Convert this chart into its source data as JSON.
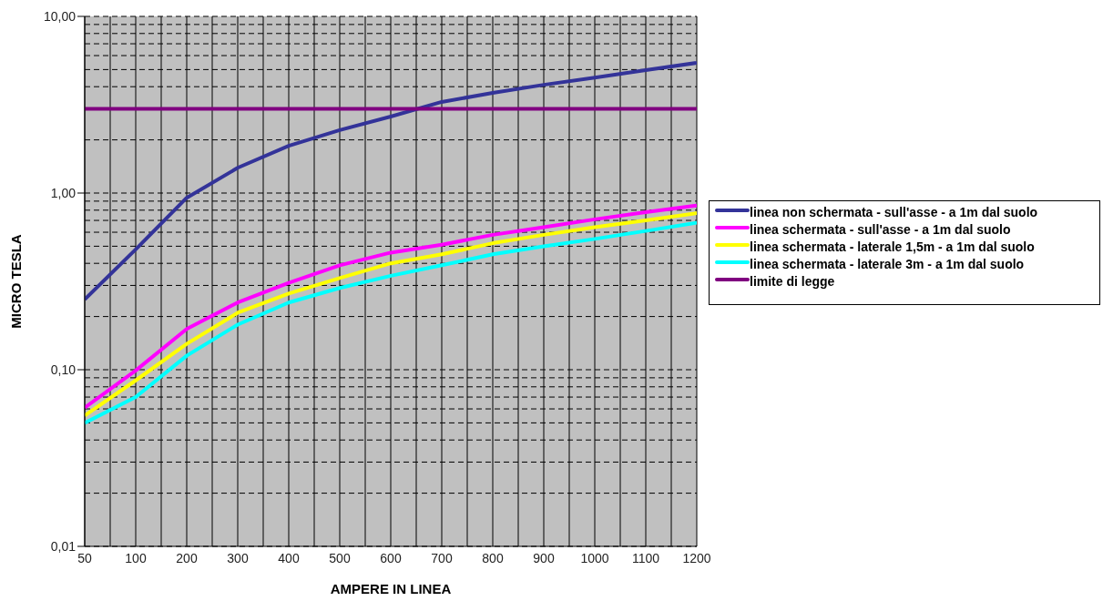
{
  "chart_data": {
    "type": "line",
    "xlabel": "AMPERE IN LINEA",
    "ylabel": "MICRO TESLA",
    "categories": [
      "50",
      "100",
      "200",
      "300",
      "400",
      "500",
      "600",
      "700",
      "800",
      "900",
      "1000",
      "1100",
      "1200"
    ],
    "series": [
      {
        "name": "linea non schermata - sull'asse - a 1m dal suolo",
        "color": "#333399",
        "values": [
          0.25,
          0.48,
          0.94,
          1.39,
          1.85,
          2.27,
          2.71,
          3.28,
          3.69,
          4.1,
          4.5,
          4.97,
          5.46
        ]
      },
      {
        "name": "linea schermata - sull'asse - a 1m dal suolo",
        "color": "#ff00ff",
        "values": [
          0.061,
          0.099,
          0.17,
          0.24,
          0.31,
          0.39,
          0.46,
          0.51,
          0.58,
          0.64,
          0.71,
          0.78,
          0.85
        ]
      },
      {
        "name": "linea schermata - laterale 1,5m - a 1m dal suolo",
        "color": "#ffff00",
        "values": [
          0.055,
          0.087,
          0.14,
          0.21,
          0.27,
          0.33,
          0.4,
          0.45,
          0.52,
          0.58,
          0.64,
          0.7,
          0.77
        ]
      },
      {
        "name": "linea schermata - laterale 3m - a 1m dal suolo",
        "color": "#00ffff",
        "values": [
          0.05,
          0.07,
          0.12,
          0.18,
          0.24,
          0.29,
          0.34,
          0.39,
          0.45,
          0.5,
          0.55,
          0.61,
          0.68
        ]
      },
      {
        "name": "limite di legge",
        "color": "#800080",
        "values": [
          3,
          3,
          3,
          3,
          3,
          3,
          3,
          3,
          3,
          3,
          3,
          3,
          3
        ]
      }
    ],
    "log": true,
    "ylim": [
      0.01,
      10
    ],
    "yticks": [
      {
        "value": 0.01,
        "label": "0,01"
      },
      {
        "value": 0.02,
        "label": null
      },
      {
        "value": 0.03,
        "label": null
      },
      {
        "value": 0.04,
        "label": null
      },
      {
        "value": 0.05,
        "label": null
      },
      {
        "value": 0.06,
        "label": null
      },
      {
        "value": 0.07,
        "label": null
      },
      {
        "value": 0.08,
        "label": null
      },
      {
        "value": 0.09,
        "label": null
      },
      {
        "value": 0.1,
        "label": "0,10"
      },
      {
        "value": 0.2,
        "label": null
      },
      {
        "value": 0.3,
        "label": null
      },
      {
        "value": 0.4,
        "label": null
      },
      {
        "value": 0.5,
        "label": null
      },
      {
        "value": 0.6,
        "label": null
      },
      {
        "value": 0.7,
        "label": null
      },
      {
        "value": 0.8,
        "label": null
      },
      {
        "value": 0.9,
        "label": null
      },
      {
        "value": 1,
        "label": "1,00"
      },
      {
        "value": 2,
        "label": null
      },
      {
        "value": 4,
        "label": null
      },
      {
        "value": 5,
        "label": null
      },
      {
        "value": 6,
        "label": null
      },
      {
        "value": 7,
        "label": null
      },
      {
        "value": 8,
        "label": null
      },
      {
        "value": 9,
        "label": null
      },
      {
        "value": 10,
        "label": "10,00"
      }
    ],
    "grid": true,
    "legend": "right",
    "marker": "none",
    "line_style": "solid"
  }
}
